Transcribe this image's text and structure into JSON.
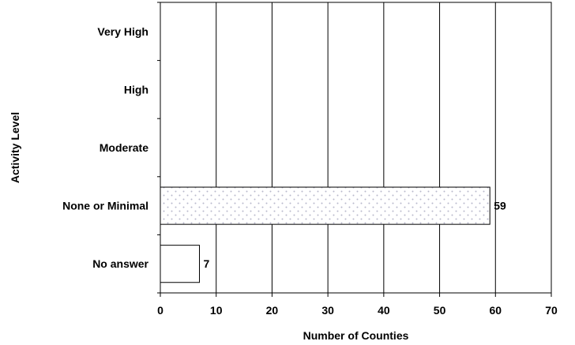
{
  "chart_data": {
    "type": "bar",
    "orientation": "horizontal",
    "title": "",
    "xlabel": "Number of Counties",
    "ylabel": "Activity Level",
    "categories": [
      "Very High",
      "High",
      "Moderate",
      "None or Minimal",
      "No answer"
    ],
    "values": [
      null,
      null,
      null,
      59,
      7
    ],
    "data_labels": [
      "",
      "",
      "",
      "59",
      "7"
    ],
    "xlim": [
      0,
      70
    ],
    "xticks": [
      "0",
      "10",
      "20",
      "30",
      "40",
      "50",
      "60",
      "70"
    ],
    "grid": "vertical",
    "legend": "none",
    "bar_fills": [
      "",
      "",
      "",
      "dotted",
      "white"
    ],
    "colors": {
      "outline": "#000000",
      "dots": "#b8b8cc",
      "fill": "#ffffff"
    }
  }
}
